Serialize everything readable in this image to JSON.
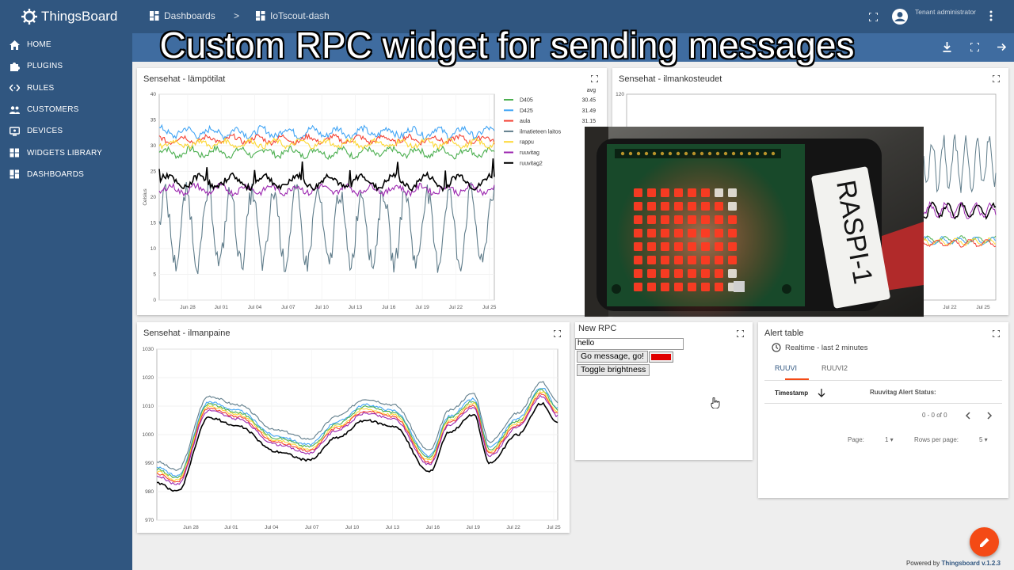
{
  "app": {
    "name": "ThingsBoard"
  },
  "overlay_title": "Custom RPC widget for sending messages",
  "breadcrumb": {
    "dashboards": "Dashboards",
    "separator": ">",
    "current": "IoTscout-dash"
  },
  "user": {
    "role": "Tenant administrator"
  },
  "nav": [
    {
      "label": "HOME",
      "icon": "home-icon"
    },
    {
      "label": "PLUGINS",
      "icon": "puzzle-icon"
    },
    {
      "label": "RULES",
      "icon": "code-icon"
    },
    {
      "label": "CUSTOMERS",
      "icon": "people-icon"
    },
    {
      "label": "DEVICES",
      "icon": "devices-icon"
    },
    {
      "label": "WIDGETS LIBRARY",
      "icon": "widgets-icon"
    },
    {
      "label": "DASHBOARDS",
      "icon": "dashboard-icon"
    }
  ],
  "widgets": {
    "temp": {
      "title": "Sensehat - lämpötilat",
      "ylabel": "Celsius",
      "avg_label": "avg"
    },
    "humidity": {
      "title": "Sensehat - ilmankosteudet"
    },
    "pressure": {
      "title": "Sensehat - ilmanpaine"
    },
    "rpc": {
      "title": "New RPC",
      "input_value": "hello",
      "send_label": "Go message, go!",
      "toggle_label": "Toggle brightness",
      "color": "#e00000"
    },
    "alert": {
      "title": "Alert table",
      "timewindow": "Realtime - last 2 minutes",
      "tabs": [
        "RUUVI",
        "RUUVI2"
      ],
      "col_timestamp": "Timestamp",
      "col_status": "Ruuvitag Alert Status:",
      "range": "0 - 0 of 0",
      "page_label": "Page:",
      "page_value": "1",
      "rows_label": "Rows per page:",
      "rows_value": "5"
    }
  },
  "footer": {
    "powered": "Powered by",
    "brand": "Thingsboard v.1.2.3"
  },
  "colors": {
    "primary": "#305680",
    "accent": "#f44a15"
  },
  "chart_data": [
    {
      "type": "line",
      "title": "Sensehat - lämpötilat",
      "ylabel": "Celsius",
      "ylim": [
        0,
        40
      ],
      "yticks": [
        0,
        5,
        10,
        15,
        20,
        25,
        30,
        35,
        40
      ],
      "xticks": [
        "Jun 28",
        "Jul 01",
        "Jul 04",
        "Jul 07",
        "Jul 10",
        "Jul 13",
        "Jul 16",
        "Jul 19",
        "Jul 22",
        "Jul 25"
      ],
      "legend": "top-right",
      "series": [
        {
          "name": "D405",
          "color": "#4caf50",
          "avg": "30.45"
        },
        {
          "name": "D425",
          "color": "#42a5f5",
          "avg": "31.49"
        },
        {
          "name": "aula",
          "color": "#f44336",
          "avg": "31.15"
        },
        {
          "name": "ilmatieteen laitos",
          "color": "#607d8b",
          "avg": "1"
        },
        {
          "name": "rappu",
          "color": "#fdd835",
          "avg": "3"
        },
        {
          "name": "ruuvitag",
          "color": "#9c27b0",
          "avg": ""
        },
        {
          "name": "ruuvitag2",
          "color": "#000000",
          "avg": "2"
        }
      ]
    },
    {
      "type": "line",
      "title": "Sensehat - ilmanpaine",
      "ylim": [
        970,
        1030
      ],
      "yticks": [
        970,
        980,
        990,
        1000,
        1010,
        1020,
        1030
      ],
      "xticks": [
        "Jun 28",
        "Jul 01",
        "Jul 04",
        "Jul 07",
        "Jul 10",
        "Jul 13",
        "Jul 16",
        "Jul 19",
        "Jul 22",
        "Jul 25"
      ]
    },
    {
      "type": "line",
      "title": "Sensehat - ilmankosteudet",
      "yticks": [
        120
      ],
      "xticks": [
        "Jul 22",
        "Jul 25"
      ]
    }
  ]
}
